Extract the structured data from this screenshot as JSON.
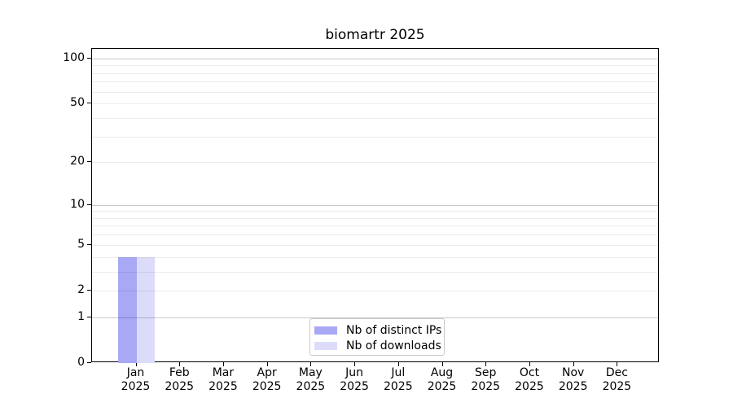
{
  "chart_data": {
    "type": "bar",
    "title": "biomartr 2025",
    "categories": [
      {
        "month": "Jan",
        "year": "2025"
      },
      {
        "month": "Feb",
        "year": "2025"
      },
      {
        "month": "Mar",
        "year": "2025"
      },
      {
        "month": "Apr",
        "year": "2025"
      },
      {
        "month": "May",
        "year": "2025"
      },
      {
        "month": "Jun",
        "year": "2025"
      },
      {
        "month": "Jul",
        "year": "2025"
      },
      {
        "month": "Aug",
        "year": "2025"
      },
      {
        "month": "Sep",
        "year": "2025"
      },
      {
        "month": "Oct",
        "year": "2025"
      },
      {
        "month": "Nov",
        "year": "2025"
      },
      {
        "month": "Dec",
        "year": "2025"
      }
    ],
    "series": [
      {
        "name": "Nb of distinct IPs",
        "color": "#a8a8f5",
        "values": [
          4,
          0,
          0,
          0,
          0,
          0,
          0,
          0,
          0,
          0,
          0,
          0
        ]
      },
      {
        "name": "Nb of downloads",
        "color": "#dcdcfa",
        "values": [
          4,
          0,
          0,
          0,
          0,
          0,
          0,
          0,
          0,
          0,
          0,
          0
        ]
      }
    ],
    "y_axis": {
      "scale": "log1p",
      "tick_values": [
        0,
        1,
        2,
        5,
        10,
        20,
        50,
        100
      ],
      "tick_labels": [
        "0",
        "1",
        "2",
        "5",
        "10",
        "20",
        "50",
        "100"
      ],
      "major_gridlines": [
        1,
        10,
        100
      ],
      "minor_gridlines": [
        2,
        3,
        4,
        5,
        6,
        7,
        8,
        9,
        20,
        30,
        40,
        50,
        60,
        70,
        80,
        90
      ],
      "ylim": [
        0,
        116
      ]
    },
    "legend": {
      "position": "lower center",
      "entries": [
        "Nb of distinct IPs",
        "Nb of downloads"
      ]
    },
    "grid": true
  }
}
